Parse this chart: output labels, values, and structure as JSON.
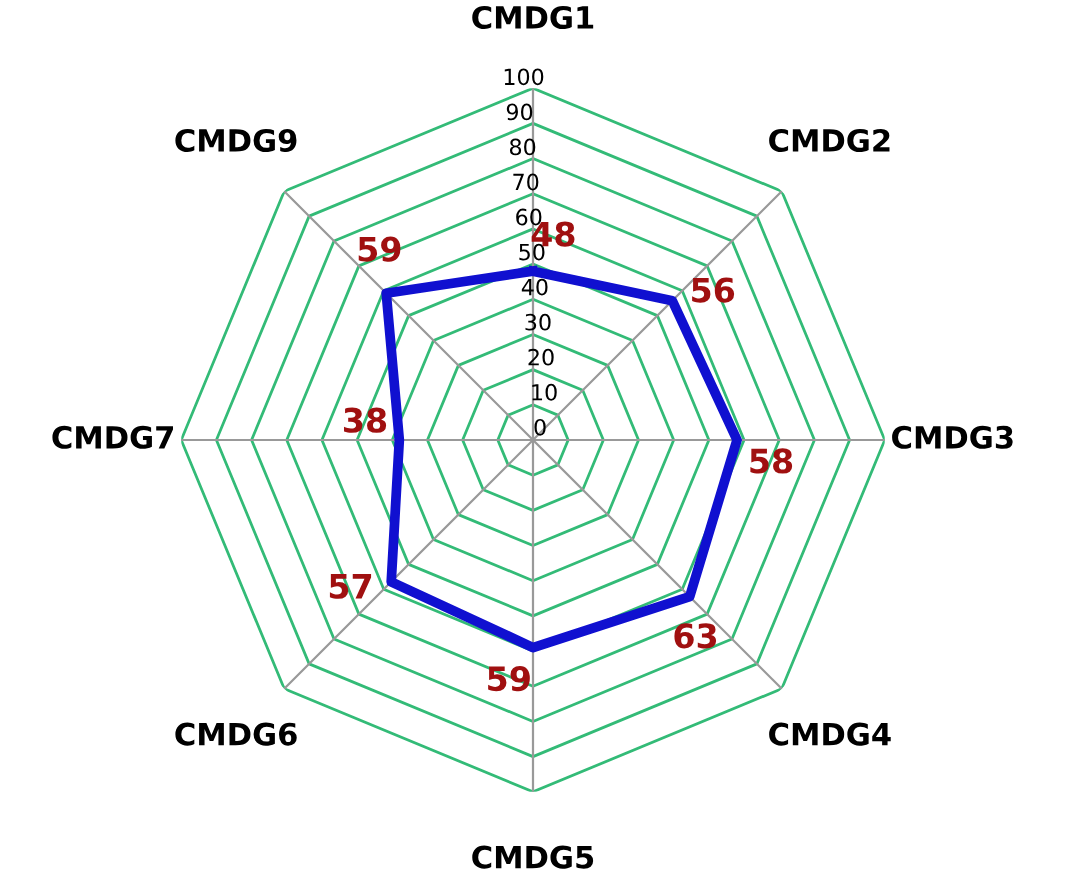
{
  "chart_data": {
    "type": "radar",
    "categories": [
      "CMDG1",
      "CMDG2",
      "CMDG3",
      "CMDG4",
      "CMDG5",
      "CMDG6",
      "CMDG7",
      "CMDG9"
    ],
    "series": [
      {
        "color": "#1010d0",
        "values": [
          48,
          56,
          58,
          63,
          59,
          57,
          38,
          59
        ]
      }
    ],
    "ylim": [
      0,
      100
    ],
    "yticks": [
      0,
      10,
      20,
      30,
      40,
      50,
      60,
      70,
      80,
      90,
      100
    ],
    "data_labels": true,
    "grid": true
  }
}
